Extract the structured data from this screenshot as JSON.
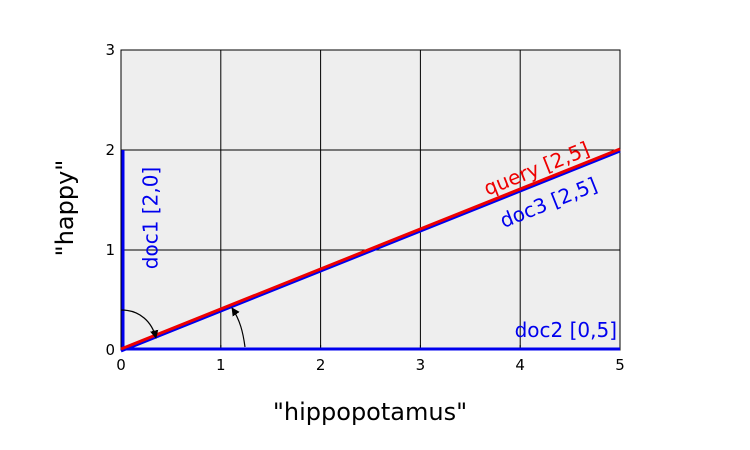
{
  "chart_data": {
    "type": "line",
    "title": "",
    "xlabel": "\"hippopotamus\"",
    "ylabel": "\"happy\"",
    "xlim": [
      0,
      5
    ],
    "ylim": [
      0,
      3
    ],
    "xticks": [
      0,
      1,
      2,
      3,
      4,
      5
    ],
    "yticks": [
      0,
      1,
      2,
      3
    ],
    "grid": true,
    "background_color": "#eeeeee",
    "series": [
      {
        "label": "doc1 [2,0]",
        "color": "#0000ee",
        "points": [
          [
            0,
            0
          ],
          [
            0,
            2
          ]
        ]
      },
      {
        "label": "doc2 [0,5]",
        "color": "#0000ee",
        "points": [
          [
            0,
            0
          ],
          [
            5,
            0
          ]
        ]
      },
      {
        "label": "doc3 [2,5]",
        "color": "#0000ee",
        "points": [
          [
            0,
            0
          ],
          [
            5,
            2
          ]
        ]
      },
      {
        "label": "query [2,5]",
        "color": "#ee0000",
        "points": [
          [
            0,
            0
          ],
          [
            5,
            2
          ]
        ]
      }
    ],
    "angle_arrows": 2
  }
}
